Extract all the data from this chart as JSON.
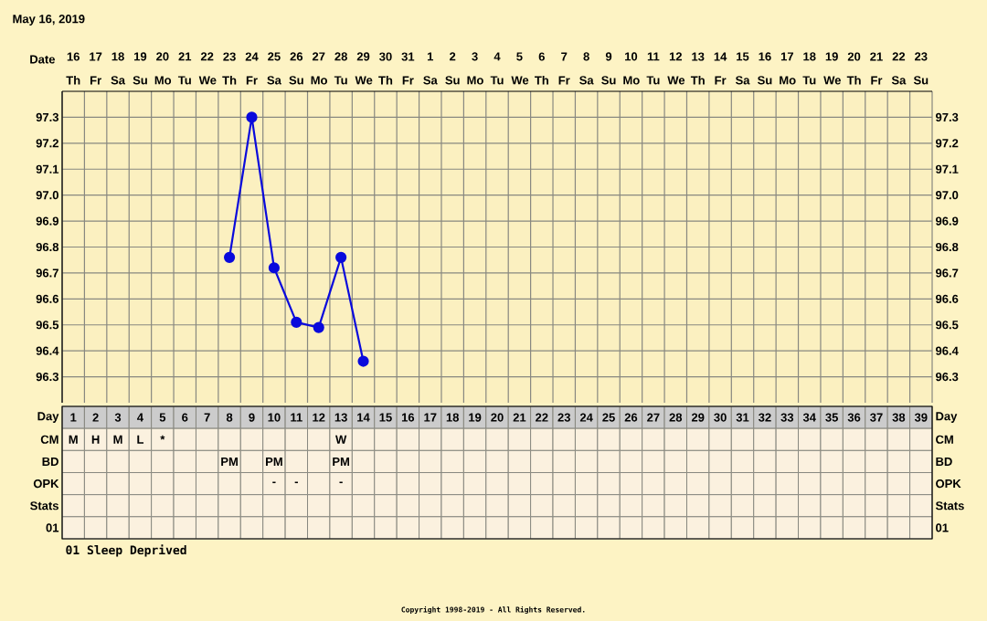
{
  "chart_data": [
    {
      "type": "line",
      "title": "May 16, 2019",
      "xlabel": "Date",
      "categories": [
        "16 Th",
        "17 Fr",
        "18 Sa",
        "19 Su",
        "20 Mo",
        "21 Tu",
        "22 We",
        "23 Th",
        "24 Fr",
        "25 Sa",
        "26 Su",
        "27 Mo",
        "28 Tu",
        "29 We",
        "30 Th",
        "31 Fr",
        "1 Sa",
        "2 Su",
        "3 Mo",
        "4 Tu",
        "5 We",
        "6 Th",
        "7 Fr",
        "8 Sa",
        "9 Su",
        "10 Mo",
        "11 Tu",
        "12 We",
        "13 Th",
        "14 Fr",
        "15 Sa",
        "16 Su",
        "17 Mo",
        "18 Tu",
        "19 We",
        "20 Th",
        "21 Fr",
        "22 Sa",
        "23 Su"
      ],
      "series": [
        {
          "color": "#0a0adc",
          "values": [
            null,
            null,
            null,
            null,
            null,
            null,
            null,
            96.76,
            97.3,
            96.72,
            96.51,
            96.49,
            96.76,
            96.36,
            null,
            null,
            null,
            null,
            null,
            null,
            null,
            null,
            null,
            null,
            null,
            null,
            null,
            null,
            null,
            null,
            null,
            null,
            null,
            null,
            null,
            null,
            null,
            null,
            null
          ]
        }
      ],
      "ylim": [
        96.2,
        97.4
      ],
      "yticks": [
        96.3,
        96.4,
        96.5,
        96.6,
        96.7,
        96.8,
        96.9,
        {
          "value": 97.0,
          "label": "97.0"
        },
        97.1,
        97.2,
        97.3
      ],
      "y2lim": [
        96.2,
        97.4
      ],
      "y2ticks": [
        96.3,
        96.4,
        96.5,
        96.6,
        96.7,
        96.8,
        96.9,
        {
          "value": 97.0,
          "label": "97.0"
        },
        97.1,
        97.2,
        97.3
      ],
      "grid": true,
      "marker": "circle",
      "line_style": "solid"
    },
    {
      "type": "heatmap",
      "xlabel": "Day",
      "categories": [
        "1",
        "2",
        "3",
        "4",
        "5",
        "6",
        "7",
        "8",
        "9",
        "10",
        "11",
        "12",
        "13",
        "14",
        "15",
        "16",
        "17",
        "18",
        "19",
        "20",
        "21",
        "22",
        "23",
        "24",
        "25",
        "26",
        "27",
        "28",
        "29",
        "30",
        "31",
        "32",
        "33",
        "34",
        "35",
        "36",
        "37",
        "38",
        "39"
      ],
      "y_categories": [
        "CM",
        "BD",
        "OPK",
        "Stats",
        "01"
      ],
      "y2_categories": [
        "CM",
        "BD",
        "OPK",
        "Stats",
        "01"
      ],
      "cells": [
        [
          null,
          null,
          null,
          null,
          null,
          null,
          null,
          null,
          null,
          null,
          null,
          null,
          null,
          null,
          null,
          null,
          null,
          null,
          null,
          null,
          null,
          null,
          null,
          null,
          null,
          null,
          null,
          null,
          null,
          null,
          null,
          null,
          null,
          null,
          null,
          null,
          null,
          null,
          null
        ],
        [
          null,
          null,
          null,
          null,
          null,
          null,
          null,
          null,
          null,
          null,
          null,
          null,
          null,
          null,
          null,
          null,
          null,
          null,
          null,
          null,
          null,
          null,
          null,
          null,
          null,
          null,
          null,
          null,
          null,
          null,
          null,
          null,
          null,
          null,
          null,
          null,
          null,
          null,
          null
        ],
        [
          null,
          null,
          null,
          null,
          null,
          null,
          null,
          null,
          null,
          null,
          null,
          null,
          null,
          null,
          null,
          null,
          null,
          null,
          null,
          null,
          null,
          null,
          null,
          null,
          null,
          null,
          null,
          null,
          null,
          null,
          null,
          null,
          null,
          null,
          null,
          null,
          null,
          null,
          null
        ],
        [
          null,
          null,
          null,
          null,
          null,
          null,
          null,
          null,
          null,
          null,
          null,
          null,
          null,
          null,
          null,
          null,
          null,
          null,
          null,
          null,
          null,
          null,
          null,
          null,
          null,
          null,
          null,
          null,
          null,
          null,
          null,
          null,
          null,
          null,
          null,
          null,
          null,
          null,
          null
        ],
        [
          null,
          null,
          null,
          null,
          null,
          null,
          null,
          null,
          null,
          null,
          null,
          null,
          null,
          null,
          null,
          null,
          null,
          null,
          null,
          null,
          null,
          null,
          null,
          null,
          null,
          null,
          null,
          null,
          null,
          null,
          null,
          null,
          null,
          null,
          null,
          null,
          null,
          null,
          null
        ]
      ],
      "cell_labels": [
        [
          "M",
          "H",
          "M",
          "L",
          "*",
          null,
          null,
          null,
          null,
          null,
          null,
          null,
          "W",
          null,
          null,
          null,
          null,
          null,
          null,
          null,
          null,
          null,
          null,
          null,
          null,
          null,
          null,
          null,
          null,
          null,
          null,
          null,
          null,
          null,
          null,
          null,
          null,
          null,
          null
        ],
        [
          null,
          null,
          null,
          null,
          null,
          null,
          null,
          "PM",
          null,
          "PM",
          null,
          null,
          "PM",
          null,
          null,
          null,
          null,
          null,
          null,
          null,
          null,
          null,
          null,
          null,
          null,
          null,
          null,
          null,
          null,
          null,
          null,
          null,
          null,
          null,
          null,
          null,
          null,
          null,
          null
        ],
        [
          null,
          null,
          null,
          null,
          null,
          null,
          null,
          null,
          null,
          "-",
          "-",
          null,
          "-",
          null,
          null,
          null,
          null,
          null,
          null,
          null,
          null,
          null,
          null,
          null,
          null,
          null,
          null,
          null,
          null,
          null,
          null,
          null,
          null,
          null,
          null,
          null,
          null,
          null,
          null
        ],
        [
          null,
          null,
          null,
          null,
          null,
          null,
          null,
          null,
          null,
          null,
          null,
          null,
          null,
          null,
          null,
          null,
          null,
          null,
          null,
          null,
          null,
          null,
          null,
          null,
          null,
          null,
          null,
          null,
          null,
          null,
          null,
          null,
          null,
          null,
          null,
          null,
          null,
          null,
          null
        ],
        [
          null,
          null,
          null,
          null,
          null,
          null,
          null,
          null,
          null,
          null,
          null,
          null,
          null,
          null,
          null,
          null,
          null,
          null,
          null,
          null,
          null,
          null,
          null,
          null,
          null,
          null,
          null,
          null,
          null,
          null,
          null,
          null,
          null,
          null,
          null,
          null,
          null,
          null,
          null
        ]
      ],
      "annotations": [
        "01 Sleep Deprived",
        "Copyright 1998-2019 - All Rights Reserved."
      ]
    }
  ]
}
